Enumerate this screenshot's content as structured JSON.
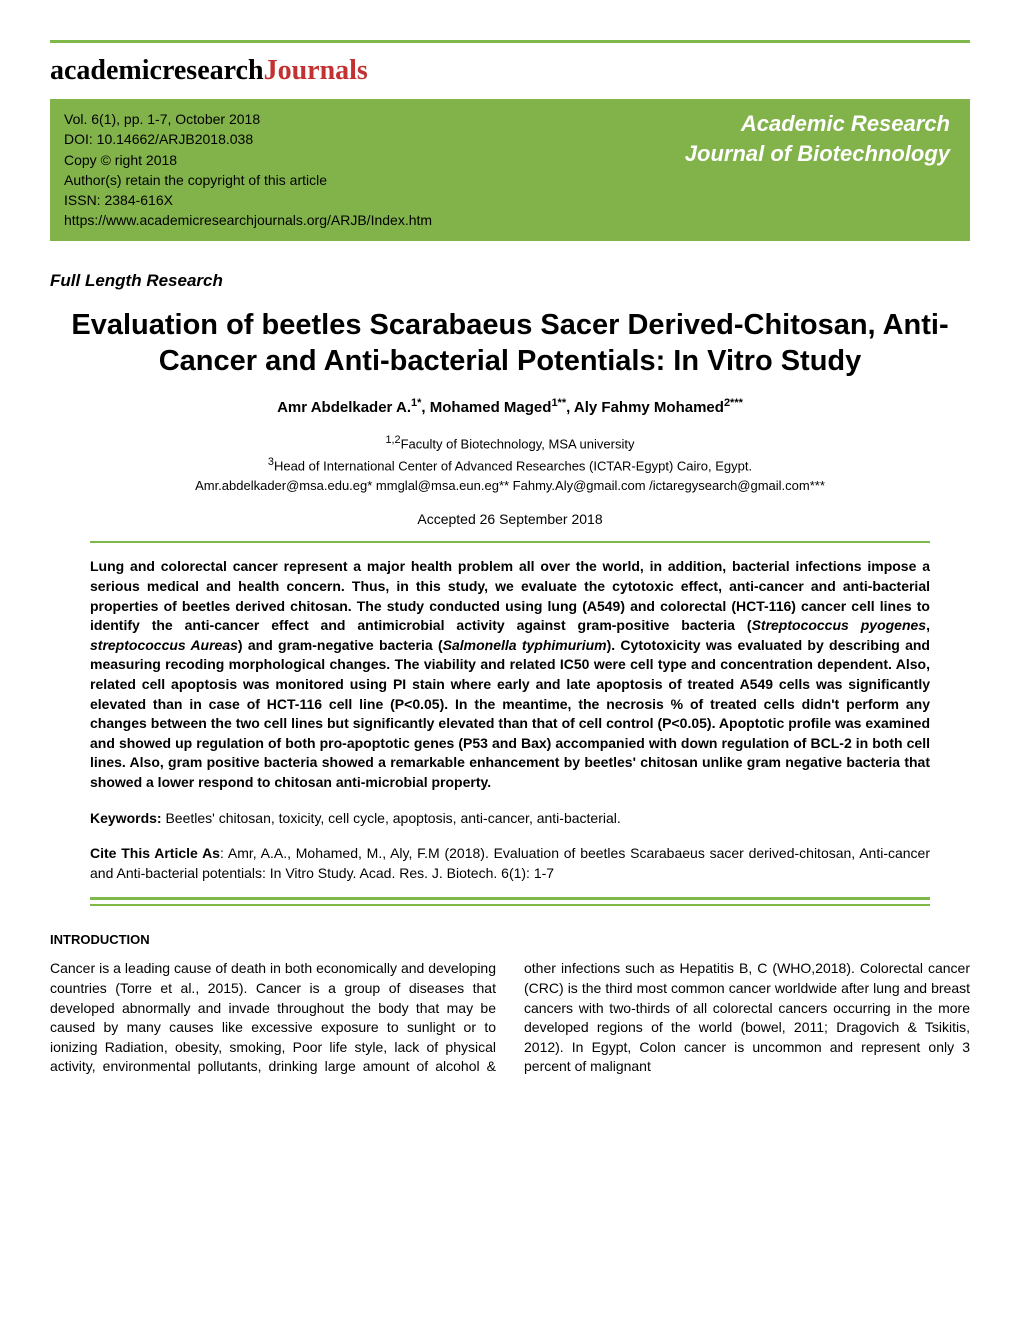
{
  "logo": {
    "part1": "academicresearch",
    "part2_letter": "J",
    "part2_rest": "ournals"
  },
  "banner": {
    "vol_line": "Vol. 6(1), pp. 1-7, October 2018",
    "doi_line": "DOI: 10.14662/ARJB2018.038",
    "copy_line": "Copy © right 2018",
    "author_retain": "Author(s) retain the copyright of this article",
    "issn": "ISSN: 2384-616X",
    "url": "https://www.academicresearchjournals.org/ARJB/Index.htm",
    "journal_name_line1": "Academic Research",
    "journal_name_line2": "Journal of Biotechnology"
  },
  "article": {
    "type": "Full Length Research",
    "title": "Evaluation of beetles Scarabaeus Sacer Derived-Chitosan, Anti-Cancer and Anti-bacterial Potentials: In Vitro Study",
    "authors_html": "Amr Abdelkader A.<sup>1*</sup>, Mohamed Maged<sup>1**</sup>, Aly Fahmy Mohamed<sup>2***</sup>",
    "affil_line1": "<sup>1,2</sup>Faculty of Biotechnology, MSA university",
    "affil_line2": "<sup>3</sup>Head of International Center of Advanced Researches (ICTAR-Egypt) Cairo, Egypt.",
    "emails": "Amr.abdelkader@msa.edu.eg* mmglal@msa.eun.eg** Fahmy.Aly@gmail.com /ictaregysearch@gmail.com***",
    "accepted": "Accepted 26 September 2018"
  },
  "abstract": {
    "body_before_italic1": "Lung and colorectal cancer represent a major health problem all over the world, in addition, bacterial infections impose a serious medical and health concern. Thus, in this study, we evaluate the cytotoxic effect, anti-cancer and anti-bacterial properties of beetles derived chitosan. The study conducted using lung (A549) and colorectal (HCT-116) cancer cell lines to identify the anti-cancer effect and antimicrobial activity against gram-positive bacteria (",
    "italic1": "Streptococcus pyogenes",
    "between1": ", ",
    "italic2": "streptococcus Aureas",
    "between2": ") and gram-negative bacteria (",
    "italic3": "Salmonella typhimurium",
    "body_after_italic3": "). Cytotoxicity was evaluated by describing and measuring recoding morphological changes. The viability and related IC50 were cell type and concentration dependent. Also, related cell apoptosis was monitored using PI stain where early and late apoptosis of treated A549 cells was significantly elevated than in case of HCT-116 cell line (P<0.05). In the meantime, the necrosis % of treated cells didn't perform any changes between the two cell lines but significantly elevated than that of cell control (P<0.05). Apoptotic profile was examined and showed up regulation of both pro-apoptotic genes (P53 and Bax) accompanied with down regulation of BCL-2 in both cell lines. Also, gram positive bacteria showed a remarkable enhancement by beetles' chitosan unlike gram negative bacteria that showed a lower respond to chitosan anti-microbial property.",
    "keywords_label": "Keywords: ",
    "keywords_text": "Beetles' chitosan, toxicity, cell cycle, apoptosis, anti-cancer, anti-bacterial.",
    "cite_label": "Cite This Article As",
    "cite_text": ": Amr, A.A., Mohamed, M., Aly, F.M (2018). Evaluation of beetles Scarabaeus sacer derived-chitosan, Anti-cancer and Anti-bacterial potentials: In Vitro Study. Acad. Res. J. Biotech. 6(1): 1-7"
  },
  "intro": {
    "heading": "INTRODUCTION",
    "body": "Cancer is a leading cause of death in both economically and developing countries (Torre et al., 2015).  Cancer is a group of diseases that developed abnormally and invade throughout the body that may be caused by many causes like excessive exposure to sunlight or to ionizing Radiation, obesity, smoking, Poor life style, lack of physical activity, environmental pollutants, drinking large amount of alcohol & other infections such as Hepatitis B, C (WHO,2018). Colorectal cancer (CRC) is the third most common cancer worldwide after lung and breast cancers with two-thirds of all colorectal cancers occurring in the more developed regions of the world (bowel, 2011; Dragovich & Tsikitis, 2012). In Egypt, Colon cancer is uncommon and represent only 3 percent of malignant"
  },
  "colors": {
    "green": "#7db848",
    "banner_green": "#82b34a",
    "logo_red": "#c23232",
    "text": "#000000",
    "banner_white": "#ffffff",
    "background": "#ffffff"
  }
}
